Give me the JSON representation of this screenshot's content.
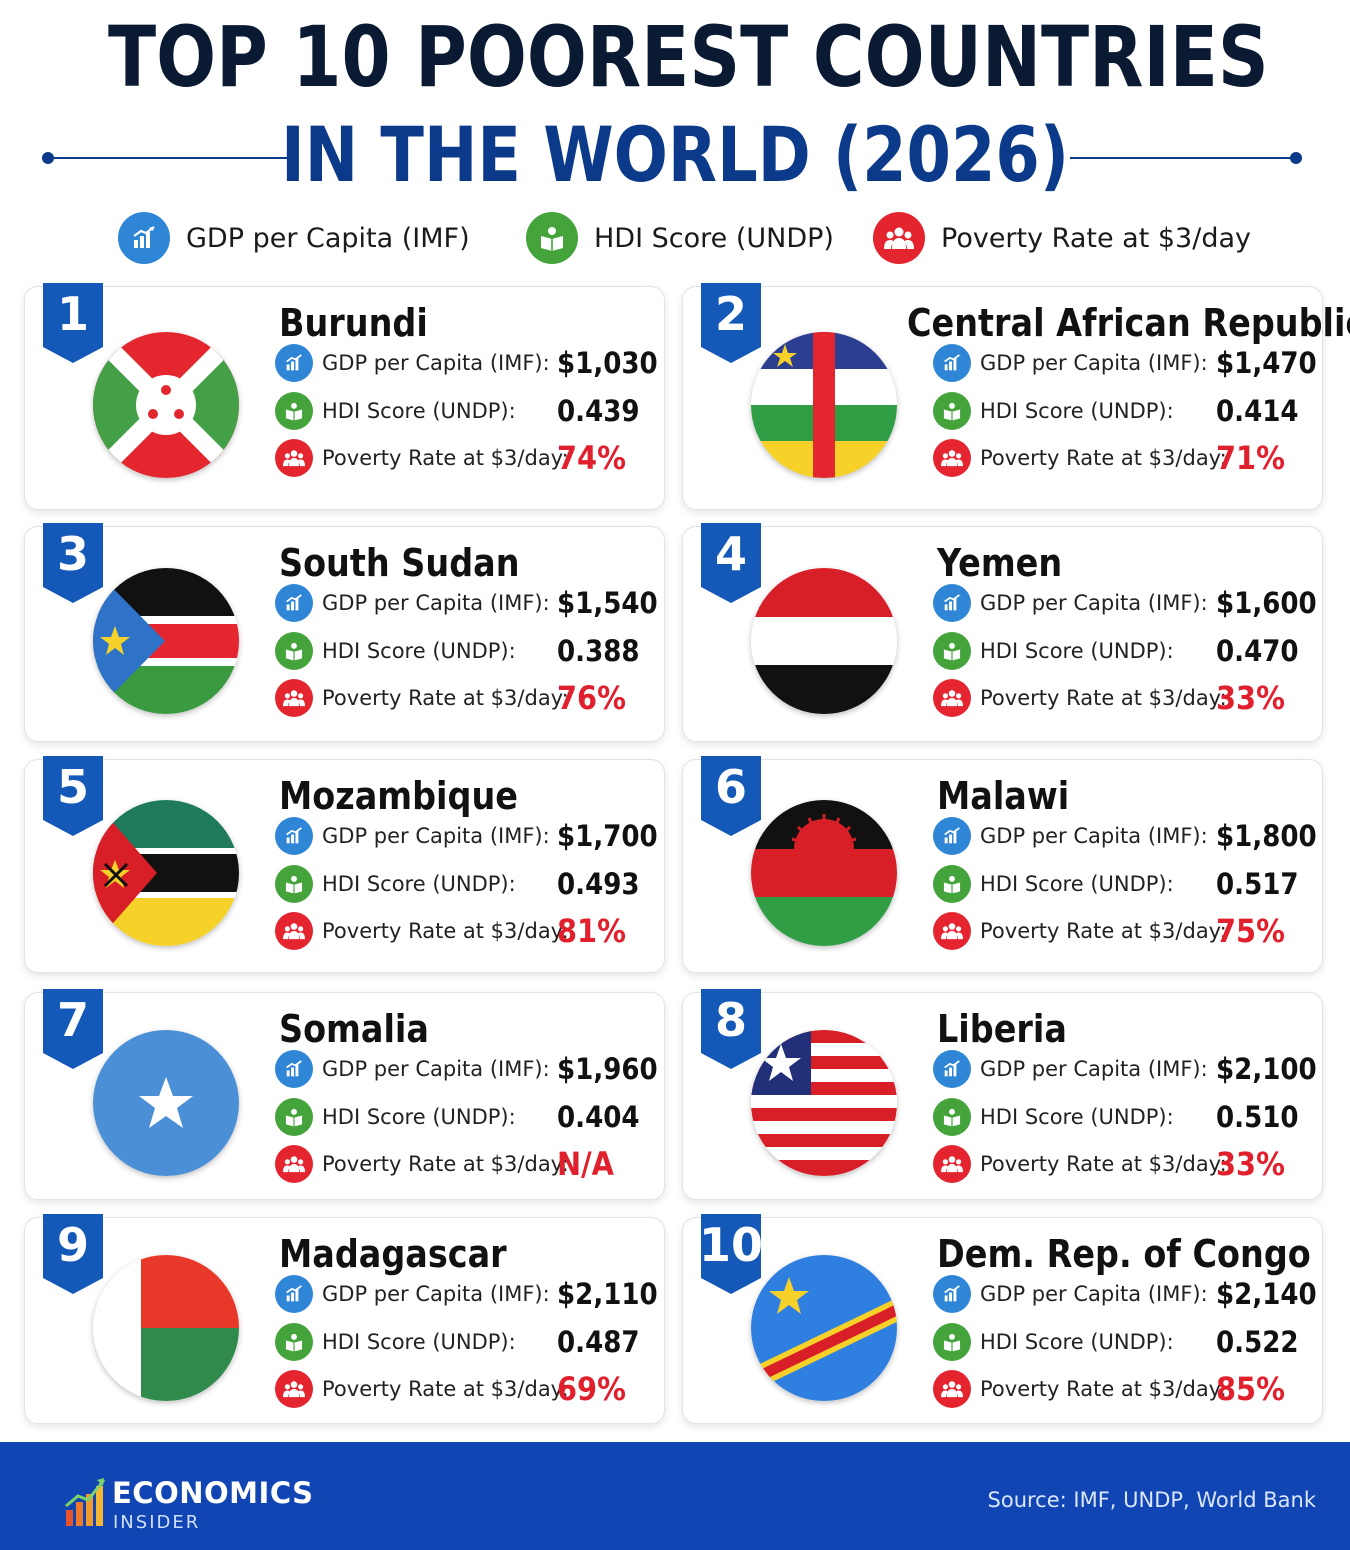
{
  "header": {
    "title_line1": "TOP 10 POOREST COUNTRIES",
    "title_line2": "IN THE WORLD (2026)"
  },
  "legend": {
    "gdp": "GDP per Capita (IMF)",
    "hdi": "HDI Score (UNDP)",
    "poverty": "Poverty Rate at $3/day"
  },
  "labels": {
    "gdp": "GDP per Capita (IMF):",
    "hdi": "HDI Score (UNDP):",
    "poverty": "Poverty Rate at $3/day:"
  },
  "colors": {
    "title_dark": "#0b1a33",
    "title_blue": "#0b3a8a",
    "badge_blue": "#1458b8",
    "gdp_icon": "#2f86d6",
    "hdi_icon": "#45a33c",
    "poverty_icon": "#e4242f",
    "poverty_value": "#e0212d",
    "footer": "#1045b3"
  },
  "icons": {
    "gdp": "bar-chart-icon",
    "hdi": "open-book-icon",
    "poverty": "people-group-icon"
  },
  "countries": [
    {
      "rank": "1",
      "name": "Burundi",
      "gdp": "$1,030",
      "hdi": "0.439",
      "poverty": "74%",
      "flag": "burundi-flag"
    },
    {
      "rank": "2",
      "name": "Central African Republic",
      "gdp": "$1,470",
      "hdi": "0.414",
      "poverty": "71%",
      "flag": "central-african-republic-flag"
    },
    {
      "rank": "3",
      "name": "South Sudan",
      "gdp": "$1,540",
      "hdi": "0.388",
      "poverty": "76%",
      "flag": "south-sudan-flag"
    },
    {
      "rank": "4",
      "name": "Yemen",
      "gdp": "$1,600",
      "hdi": "0.470",
      "poverty": "33%",
      "flag": "yemen-flag"
    },
    {
      "rank": "5",
      "name": "Mozambique",
      "gdp": "$1,700",
      "hdi": "0.493",
      "poverty": "81%",
      "flag": "mozambique-flag"
    },
    {
      "rank": "6",
      "name": "Malawi",
      "gdp": "$1,800",
      "hdi": "0.517",
      "poverty": "75%",
      "flag": "malawi-flag"
    },
    {
      "rank": "7",
      "name": "Somalia",
      "gdp": "$1,960",
      "hdi": "0.404",
      "poverty": "N/A",
      "flag": "somalia-flag"
    },
    {
      "rank": "8",
      "name": "Liberia",
      "gdp": "$2,100",
      "hdi": "0.510",
      "poverty": "33%",
      "flag": "liberia-flag"
    },
    {
      "rank": "9",
      "name": "Madagascar",
      "gdp": "$2,110",
      "hdi": "0.487",
      "poverty": "69%",
      "flag": "madagascar-flag"
    },
    {
      "rank": "10",
      "name": "Dem. Rep. of Congo",
      "gdp": "$2,140",
      "hdi": "0.522",
      "poverty": "85%",
      "flag": "dr-congo-flag"
    }
  ],
  "footer": {
    "brand_line1": "ECONOMICS",
    "brand_line2": "INSIDER",
    "source": "Source: IMF, UNDP, World Bank"
  }
}
